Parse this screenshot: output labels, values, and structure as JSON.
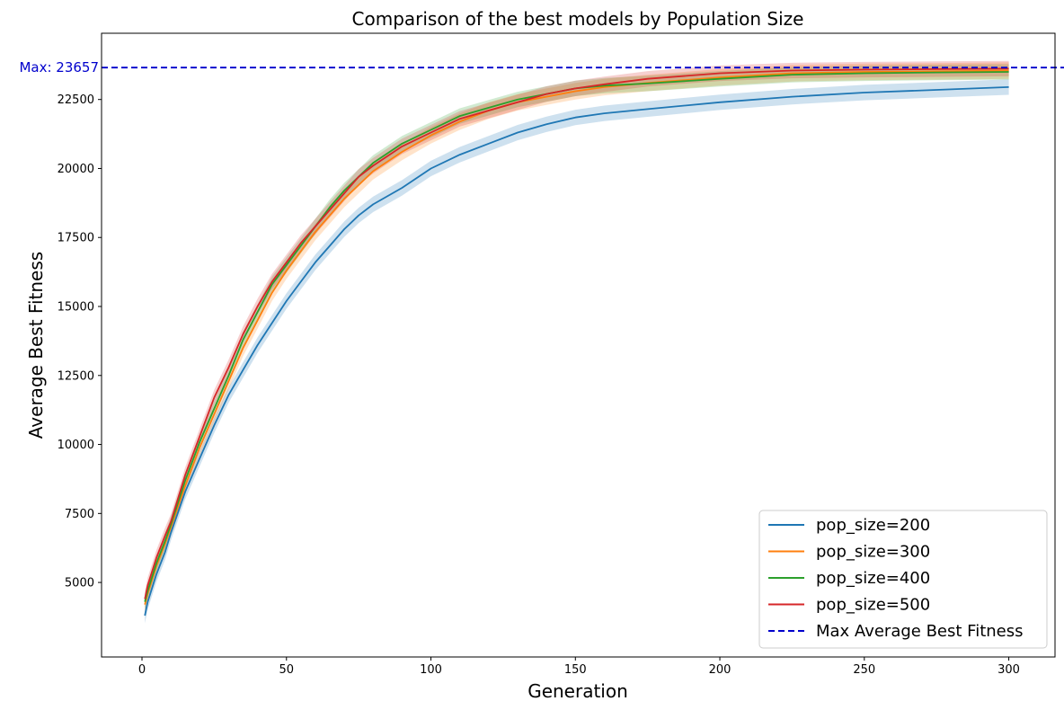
{
  "chart_data": {
    "type": "line",
    "title": "Comparison of the best models by Population Size",
    "xlabel": "Generation",
    "ylabel": "Average Best Fitness",
    "xlim": [
      -14,
      316
    ],
    "ylim": [
      2300,
      24900
    ],
    "xticks": [
      0,
      50,
      100,
      150,
      200,
      250,
      300
    ],
    "yticks": [
      5000,
      7500,
      10000,
      12500,
      15000,
      17500,
      20000,
      22500
    ],
    "grid": false,
    "legend_position": "lower-right",
    "max_line": {
      "value": 23657,
      "label": "Max: 23657",
      "legend": "Max Average Best Fitness",
      "color": "#0000cc",
      "style": "dashed"
    },
    "series": [
      {
        "name": "pop_size=200",
        "color": "#1f77b4",
        "band": 280,
        "points": [
          [
            1,
            3800
          ],
          [
            2,
            4300
          ],
          [
            5,
            5300
          ],
          [
            8,
            6100
          ],
          [
            10,
            6800
          ],
          [
            15,
            8300
          ],
          [
            20,
            9500
          ],
          [
            25,
            10700
          ],
          [
            30,
            11800
          ],
          [
            35,
            12700
          ],
          [
            40,
            13600
          ],
          [
            45,
            14400
          ],
          [
            50,
            15200
          ],
          [
            55,
            15900
          ],
          [
            60,
            16600
          ],
          [
            65,
            17200
          ],
          [
            70,
            17800
          ],
          [
            75,
            18300
          ],
          [
            80,
            18700
          ],
          [
            90,
            19300
          ],
          [
            100,
            20000
          ],
          [
            110,
            20500
          ],
          [
            120,
            20900
          ],
          [
            130,
            21300
          ],
          [
            140,
            21600
          ],
          [
            150,
            21850
          ],
          [
            160,
            22000
          ],
          [
            175,
            22150
          ],
          [
            200,
            22400
          ],
          [
            225,
            22600
          ],
          [
            250,
            22750
          ],
          [
            275,
            22850
          ],
          [
            300,
            22950
          ]
        ]
      },
      {
        "name": "pop_size=300",
        "color": "#ff7f0e",
        "band": 300,
        "points": [
          [
            1,
            4200
          ],
          [
            2,
            4600
          ],
          [
            5,
            5600
          ],
          [
            8,
            6400
          ],
          [
            10,
            7000
          ],
          [
            15,
            8500
          ],
          [
            20,
            9900
          ],
          [
            25,
            11100
          ],
          [
            30,
            12300
          ],
          [
            35,
            13500
          ],
          [
            40,
            14500
          ],
          [
            45,
            15500
          ],
          [
            50,
            16300
          ],
          [
            55,
            17000
          ],
          [
            60,
            17700
          ],
          [
            65,
            18300
          ],
          [
            70,
            18900
          ],
          [
            75,
            19400
          ],
          [
            80,
            19900
          ],
          [
            90,
            20600
          ],
          [
            100,
            21200
          ],
          [
            110,
            21700
          ],
          [
            120,
            22100
          ],
          [
            130,
            22400
          ],
          [
            140,
            22600
          ],
          [
            150,
            22800
          ],
          [
            160,
            22950
          ],
          [
            175,
            23100
          ],
          [
            200,
            23300
          ],
          [
            225,
            23450
          ],
          [
            250,
            23500
          ],
          [
            275,
            23520
          ],
          [
            300,
            23550
          ]
        ]
      },
      {
        "name": "pop_size=400",
        "color": "#2ca02c",
        "band": 280,
        "points": [
          [
            1,
            4300
          ],
          [
            2,
            4700
          ],
          [
            5,
            5700
          ],
          [
            8,
            6500
          ],
          [
            10,
            7100
          ],
          [
            15,
            8700
          ],
          [
            20,
            10100
          ],
          [
            25,
            11300
          ],
          [
            30,
            12500
          ],
          [
            35,
            13800
          ],
          [
            40,
            14800
          ],
          [
            45,
            15800
          ],
          [
            50,
            16500
          ],
          [
            55,
            17200
          ],
          [
            60,
            17900
          ],
          [
            65,
            18600
          ],
          [
            70,
            19200
          ],
          [
            75,
            19700
          ],
          [
            80,
            20200
          ],
          [
            90,
            20900
          ],
          [
            100,
            21400
          ],
          [
            110,
            21900
          ],
          [
            120,
            22200
          ],
          [
            130,
            22500
          ],
          [
            140,
            22700
          ],
          [
            150,
            22900
          ],
          [
            160,
            23000
          ],
          [
            175,
            23080
          ],
          [
            200,
            23250
          ],
          [
            225,
            23400
          ],
          [
            250,
            23450
          ],
          [
            275,
            23480
          ],
          [
            300,
            23500
          ]
        ]
      },
      {
        "name": "pop_size=500",
        "color": "#d62728",
        "band": 280,
        "points": [
          [
            1,
            4400
          ],
          [
            2,
            4900
          ],
          [
            5,
            5900
          ],
          [
            8,
            6700
          ],
          [
            10,
            7200
          ],
          [
            15,
            8900
          ],
          [
            20,
            10300
          ],
          [
            25,
            11700
          ],
          [
            30,
            12800
          ],
          [
            35,
            14000
          ],
          [
            40,
            15000
          ],
          [
            45,
            15900
          ],
          [
            50,
            16600
          ],
          [
            55,
            17300
          ],
          [
            60,
            17900
          ],
          [
            65,
            18500
          ],
          [
            70,
            19100
          ],
          [
            75,
            19700
          ],
          [
            80,
            20100
          ],
          [
            90,
            20800
          ],
          [
            100,
            21300
          ],
          [
            110,
            21800
          ],
          [
            120,
            22100
          ],
          [
            130,
            22400
          ],
          [
            140,
            22700
          ],
          [
            150,
            22900
          ],
          [
            160,
            23050
          ],
          [
            175,
            23250
          ],
          [
            200,
            23450
          ],
          [
            225,
            23550
          ],
          [
            250,
            23580
          ],
          [
            275,
            23600
          ],
          [
            300,
            23620
          ]
        ]
      }
    ]
  }
}
